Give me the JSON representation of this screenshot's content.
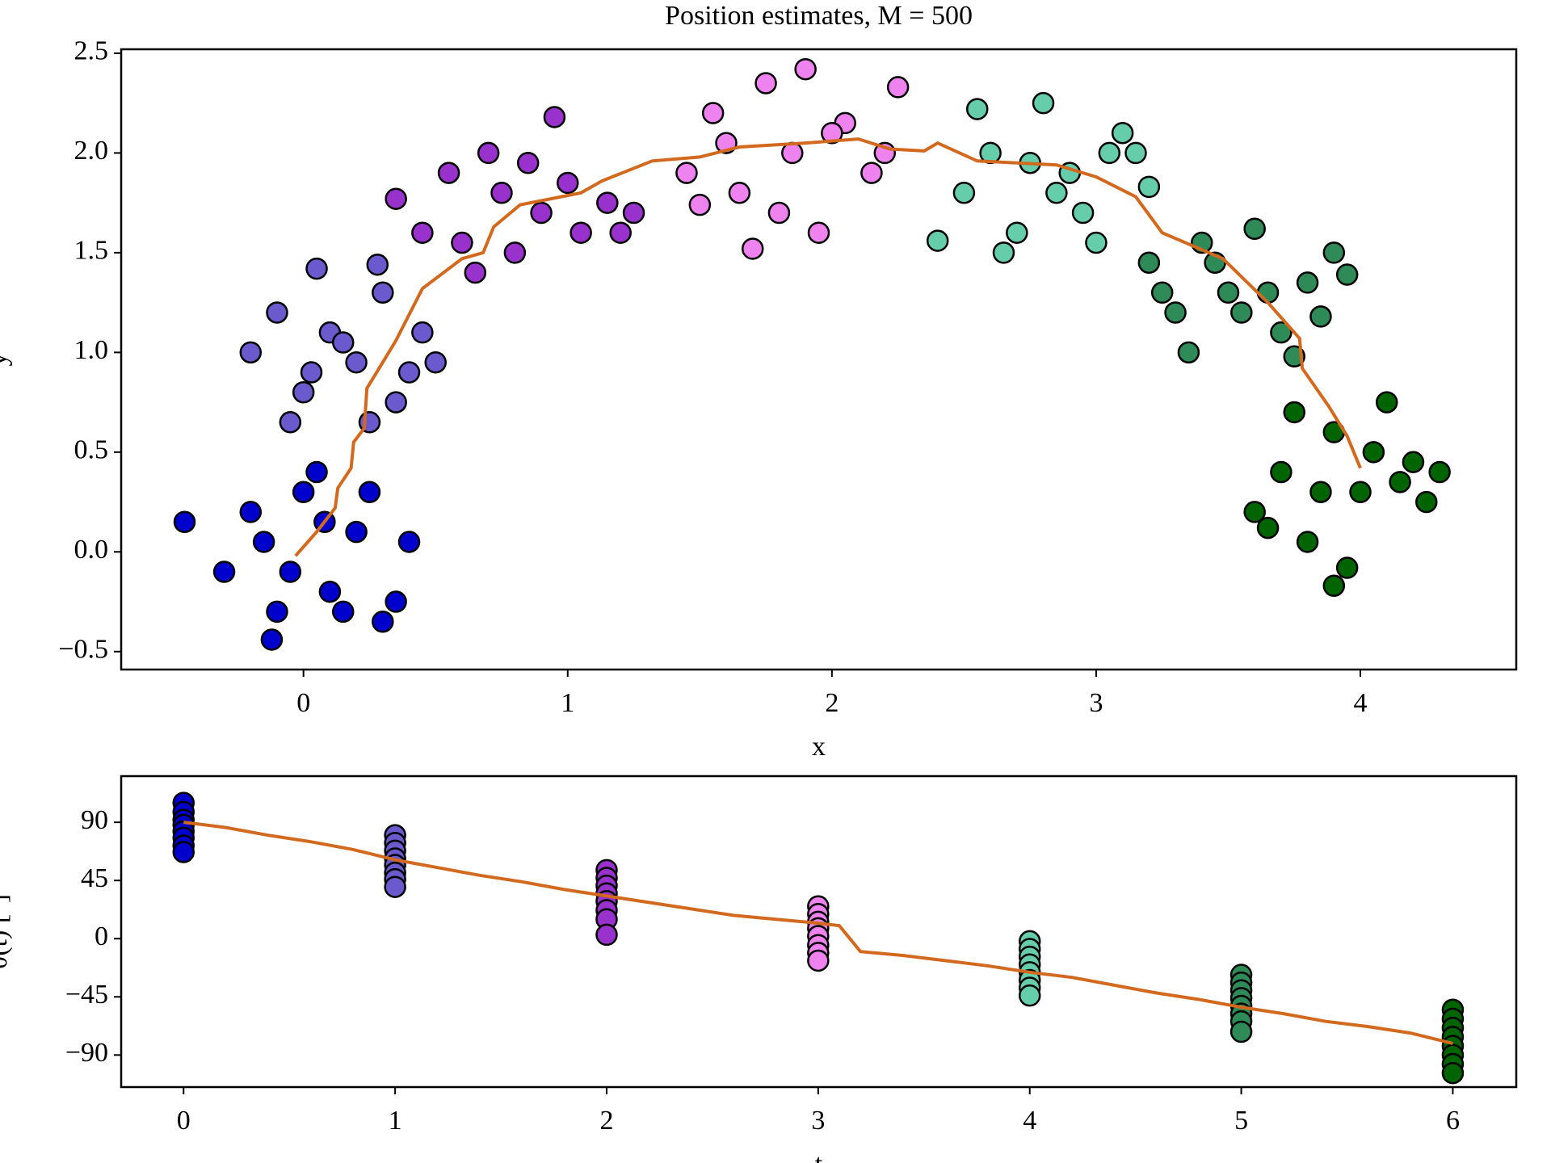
{
  "chart_data": [
    {
      "type": "scatter",
      "title": "Position estimates, M = 500",
      "x_label": "x",
      "y_label": "y",
      "xlim": [
        -0.69,
        4.59
      ],
      "ylim": [
        -0.59,
        2.52
      ],
      "xticks": [
        0,
        1,
        2,
        3,
        4
      ],
      "yticks": [
        {
          "value": -0.5,
          "label": "−0.5"
        },
        {
          "value": 0,
          "label": "0.0"
        },
        0.5,
        {
          "value": 1,
          "label": "1.0"
        },
        1.5,
        {
          "value": 2,
          "label": "2.0"
        },
        2.5
      ],
      "series": [
        {
          "color": "#0000cd",
          "x": [
            -0.45,
            -0.3,
            -0.2,
            -0.1,
            0,
            0.1,
            0.2,
            0.3,
            0.4,
            -0.15,
            0.05,
            0.25,
            -0.05,
            0.15,
            0.35,
            -0.12,
            0.08
          ],
          "y": [
            0.15,
            -0.1,
            0.2,
            -0.3,
            0.3,
            -0.2,
            0.1,
            -0.35,
            0.05,
            0.05,
            0.4,
            0.3,
            -0.1,
            -0.3,
            -0.25,
            -0.44,
            0.15
          ]
        },
        {
          "color": "#6a5acd",
          "x": [
            -0.2,
            -0.1,
            0,
            0.1,
            0.2,
            0.3,
            0.4,
            0.5,
            0.05,
            0.25,
            -0.05,
            0.15,
            0.35,
            0.45,
            0.03,
            0.28
          ],
          "y": [
            1.0,
            1.2,
            0.8,
            1.1,
            0.95,
            1.3,
            0.9,
            0.95,
            1.42,
            0.65,
            0.65,
            1.05,
            0.75,
            1.1,
            0.9,
            1.44
          ]
        },
        {
          "color": "#9932cc",
          "x": [
            0.45,
            0.55,
            0.65,
            0.75,
            0.85,
            0.95,
            1.05,
            1.15,
            1.25,
            0.6,
            0.8,
            1.0,
            1.2,
            0.35,
            0.7,
            0.9
          ],
          "y": [
            1.6,
            1.9,
            1.4,
            1.8,
            1.95,
            2.18,
            1.6,
            1.75,
            1.7,
            1.55,
            1.5,
            1.85,
            1.6,
            1.77,
            2.0,
            1.7
          ]
        },
        {
          "color": "#ee82ee",
          "x": [
            1.45,
            1.55,
            1.65,
            1.75,
            1.85,
            1.95,
            2.05,
            2.15,
            2.25,
            1.6,
            1.8,
            2.0,
            1.7,
            1.9,
            2.2,
            1.5
          ],
          "y": [
            1.9,
            2.2,
            1.8,
            2.35,
            2.0,
            1.6,
            2.15,
            1.9,
            2.33,
            2.05,
            1.7,
            2.1,
            1.52,
            2.42,
            2.0,
            1.74
          ]
        },
        {
          "color": "#66cdaa",
          "x": [
            2.4,
            2.5,
            2.6,
            2.7,
            2.8,
            2.9,
            3.0,
            3.1,
            3.2,
            2.55,
            2.75,
            2.95,
            3.15,
            2.65,
            2.85,
            3.05
          ],
          "y": [
            1.56,
            1.8,
            2.0,
            1.6,
            2.25,
            1.9,
            1.55,
            2.1,
            1.83,
            2.22,
            1.95,
            1.7,
            2.0,
            1.5,
            1.8,
            2.0
          ]
        },
        {
          "color": "#2e8b57",
          "x": [
            3.2,
            3.3,
            3.4,
            3.5,
            3.6,
            3.7,
            3.8,
            3.9,
            3.95,
            3.35,
            3.55,
            3.75,
            3.45,
            3.65,
            3.85,
            3.25
          ],
          "y": [
            1.45,
            1.2,
            1.55,
            1.3,
            1.62,
            1.1,
            1.35,
            1.5,
            1.39,
            1.0,
            1.2,
            0.98,
            1.45,
            1.3,
            1.18,
            1.3
          ]
        },
        {
          "color": "#006400",
          "x": [
            3.6,
            3.7,
            3.8,
            3.9,
            4.0,
            4.1,
            4.2,
            4.3,
            3.65,
            3.85,
            4.05,
            4.25,
            3.75,
            3.95,
            4.15,
            3.9
          ],
          "y": [
            0.2,
            0.4,
            0.05,
            0.6,
            0.3,
            0.75,
            0.45,
            0.4,
            0.12,
            0.3,
            0.5,
            0.25,
            0.7,
            -0.08,
            0.35,
            -0.17
          ]
        }
      ],
      "line": {
        "color": "#d2691e",
        "x": [
          -0.03,
          0.05,
          0.12,
          0.13,
          0.18,
          0.19,
          0.23,
          0.24,
          0.3,
          0.35,
          0.45,
          0.6,
          0.68,
          0.72,
          0.82,
          1.05,
          1.13,
          1.32,
          1.5,
          1.65,
          1.9,
          2.1,
          2.22,
          2.35,
          2.4,
          2.55,
          2.85,
          3.0,
          3.15,
          3.25,
          3.48,
          3.65,
          3.77,
          3.78,
          3.88,
          3.95,
          4.0
        ],
        "y": [
          -0.02,
          0.1,
          0.22,
          0.32,
          0.42,
          0.55,
          0.62,
          0.82,
          0.95,
          1.06,
          1.32,
          1.47,
          1.5,
          1.63,
          1.74,
          1.8,
          1.86,
          1.96,
          1.98,
          2.03,
          2.05,
          2.07,
          2.02,
          2.01,
          2.05,
          1.96,
          1.94,
          1.88,
          1.78,
          1.6,
          1.47,
          1.25,
          1.07,
          0.92,
          0.73,
          0.58,
          0.42
        ]
      }
    },
    {
      "type": "scatter",
      "x_label": "t",
      "y_label": "θ(t) [°]",
      "xlim": [
        -0.295,
        6.3
      ],
      "ylim": [
        -114.8,
        125.7
      ],
      "xticks": [
        0,
        1,
        2,
        3,
        4,
        5,
        6
      ],
      "yticks": [
        {
          "value": -90,
          "label": "−90"
        },
        {
          "value": -45,
          "label": "−45"
        },
        0,
        45,
        90
      ],
      "series": [
        {
          "color": "#0000cd",
          "x": [
            0,
            0,
            0,
            0,
            0,
            0,
            0,
            0
          ],
          "y": [
            105,
            98,
            92,
            88,
            83,
            78,
            72,
            67
          ]
        },
        {
          "color": "#6a5acd",
          "x": [
            1,
            1,
            1,
            1,
            1,
            1,
            1,
            1
          ],
          "y": [
            80,
            74,
            68,
            62,
            57,
            51,
            46,
            40
          ]
        },
        {
          "color": "#9932cc",
          "x": [
            2,
            2,
            2,
            2,
            2,
            2,
            2,
            2
          ],
          "y": [
            53,
            47,
            41,
            35,
            29,
            22,
            15,
            3
          ]
        },
        {
          "color": "#ee82ee",
          "x": [
            3,
            3,
            3,
            3,
            3,
            3,
            3,
            3
          ],
          "y": [
            25,
            19,
            13,
            8,
            2,
            -5,
            -11,
            -17
          ]
        },
        {
          "color": "#66cdaa",
          "x": [
            4,
            4,
            4,
            4,
            4,
            4,
            4,
            4
          ],
          "y": [
            -2,
            -8,
            -14,
            -20,
            -26,
            -32,
            -38,
            -44
          ]
        },
        {
          "color": "#2e8b57",
          "x": [
            5,
            5,
            5,
            5,
            5,
            5,
            5,
            5
          ],
          "y": [
            -28,
            -34,
            -40,
            -46,
            -52,
            -58,
            -64,
            -72
          ]
        },
        {
          "color": "#006400",
          "x": [
            6,
            6,
            6,
            6,
            6,
            6,
            6,
            6
          ],
          "y": [
            -55,
            -62,
            -69,
            -76,
            -83,
            -90,
            -97,
            -104
          ]
        }
      ],
      "line": {
        "color": "#d2691e",
        "x": [
          0,
          0.2,
          0.4,
          0.6,
          0.8,
          1.0,
          1.2,
          1.4,
          1.6,
          1.8,
          2.0,
          2.2,
          2.4,
          2.6,
          2.8,
          3.0,
          3.1,
          3.2,
          3.4,
          3.6,
          3.8,
          4.0,
          4.2,
          4.4,
          4.6,
          4.8,
          5.0,
          5.2,
          5.4,
          5.6,
          5.8,
          6.0
        ],
        "y": [
          90,
          86,
          80,
          75,
          69,
          61,
          55,
          49,
          44,
          38,
          33,
          28,
          23,
          18,
          15,
          12,
          10,
          -10,
          -13,
          -17,
          -21,
          -26,
          -30,
          -36,
          -42,
          -47,
          -53,
          -58,
          -64,
          -68,
          -73,
          -81
        ]
      }
    }
  ]
}
